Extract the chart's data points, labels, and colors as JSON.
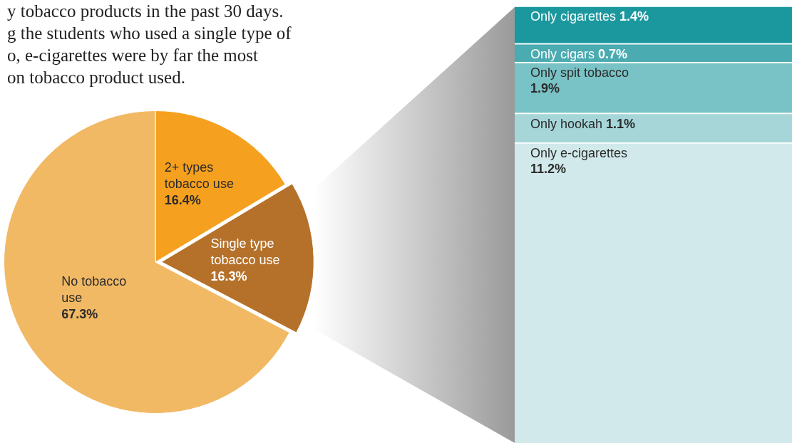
{
  "chart_data": [
    {
      "type": "pie",
      "annotations": [
        "y tobacco products in the past 30 days.",
        "g the students who used a single type of",
        "o, e-cigarettes were by far the most",
        "on tobacco product used."
      ],
      "categories": [
        "2+ types tobacco use",
        "Single type tobacco use",
        "No tobacco use"
      ],
      "values": [
        16.4,
        16.3,
        67.3
      ],
      "value_labels": [
        "16.4%",
        "16.3%",
        "67.3%"
      ],
      "colors": [
        "#f5a01e",
        "#b5712a",
        "#f2b964"
      ],
      "legend": false
    },
    {
      "type": "bar",
      "stacked": true,
      "categories": [
        null
      ],
      "tick_labels": false,
      "legend": false,
      "series": [
        {
          "name": "Only e-cigarettes",
          "color": "#d1e9ea",
          "values": [
            11.2
          ],
          "value_labels": [
            "11.2%"
          ]
        },
        {
          "name": "Only hookah",
          "color": "#a6d6d8",
          "values": [
            1.1
          ],
          "value_labels": [
            "1.1%"
          ]
        },
        {
          "name": "Only spit tobacco",
          "color": "#79c2c5",
          "values": [
            1.9
          ],
          "value_labels": [
            "1.9%"
          ]
        },
        {
          "name": "Only cigars",
          "color": "#4aabb0",
          "values": [
            0.7
          ],
          "value_labels": [
            "0.7%"
          ]
        },
        {
          "name": "Only cigarettes",
          "color": "#1b989e",
          "values": [
            1.4
          ],
          "value_labels": [
            "1.4%"
          ]
        }
      ]
    }
  ]
}
